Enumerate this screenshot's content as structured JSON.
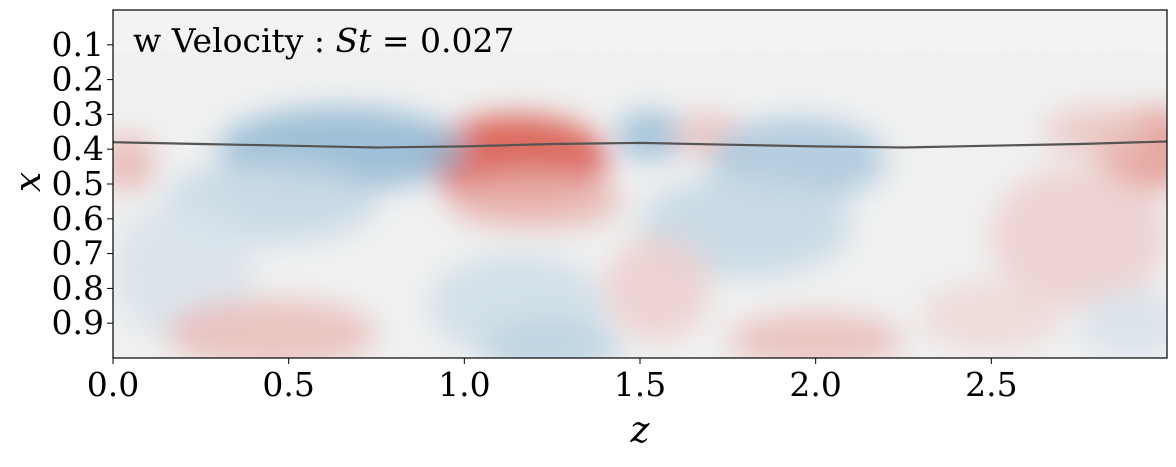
{
  "chart_data": {
    "type": "heatmap",
    "title": "w Velocity : St = 0.027",
    "title_parts": {
      "prefix": "w Velocity : ",
      "var": "St",
      "rest": " = 0.027"
    },
    "xlabel": "z",
    "ylabel": "x",
    "xlim": [
      0.0,
      3.0
    ],
    "ylim": [
      1.0,
      0.0
    ],
    "x_ticks": [
      {
        "value": 0.0,
        "label": "0.0"
      },
      {
        "value": 0.5,
        "label": "0.5"
      },
      {
        "value": 1.0,
        "label": "1.0"
      },
      {
        "value": 1.5,
        "label": "1.5"
      },
      {
        "value": 2.0,
        "label": "2.0"
      },
      {
        "value": 2.5,
        "label": "2.5"
      }
    ],
    "y_ticks": [
      {
        "value": 0.1,
        "label": "0.1"
      },
      {
        "value": 0.2,
        "label": "0.2"
      },
      {
        "value": 0.3,
        "label": "0.3"
      },
      {
        "value": 0.4,
        "label": "0.4"
      },
      {
        "value": 0.5,
        "label": "0.5"
      },
      {
        "value": 0.6,
        "label": "0.6"
      },
      {
        "value": 0.7,
        "label": "0.7"
      },
      {
        "value": 0.8,
        "label": "0.8"
      },
      {
        "value": 0.9,
        "label": "0.9"
      }
    ],
    "colormap": {
      "negative": "#2c7fb8",
      "zero": "#f7f7f7",
      "positive": "#d7301f"
    },
    "interface_line": {
      "color": "#555555",
      "z": [
        0.0,
        0.25,
        0.5,
        0.75,
        1.0,
        1.25,
        1.5,
        1.75,
        2.0,
        2.25,
        2.5,
        2.75,
        3.0
      ],
      "x": [
        0.38,
        0.385,
        0.39,
        0.395,
        0.392,
        0.385,
        0.382,
        0.387,
        0.392,
        0.395,
        0.39,
        0.385,
        0.378
      ]
    },
    "regions": [
      {
        "z": 1.15,
        "x": 0.43,
        "rz": 0.26,
        "rx": 0.13,
        "value": 0.9
      },
      {
        "z": 1.2,
        "x": 0.55,
        "rz": 0.25,
        "rx": 0.08,
        "value": 0.35
      },
      {
        "z": 0.65,
        "x": 0.4,
        "rz": 0.35,
        "rx": 0.12,
        "value": -0.55
      },
      {
        "z": 0.45,
        "x": 0.55,
        "rz": 0.3,
        "rx": 0.12,
        "value": -0.25
      },
      {
        "z": 1.53,
        "x": 0.36,
        "rz": 0.1,
        "rx": 0.07,
        "value": -0.5
      },
      {
        "z": 1.7,
        "x": 0.36,
        "rz": 0.1,
        "rx": 0.06,
        "value": 0.3
      },
      {
        "z": 1.95,
        "x": 0.43,
        "rz": 0.25,
        "rx": 0.12,
        "value": -0.4
      },
      {
        "z": 1.8,
        "x": 0.62,
        "rz": 0.3,
        "rx": 0.15,
        "value": -0.25
      },
      {
        "z": 2.95,
        "x": 0.4,
        "rz": 0.15,
        "rx": 0.12,
        "value": 0.5
      },
      {
        "z": 2.8,
        "x": 0.35,
        "rz": 0.15,
        "rx": 0.07,
        "value": 0.25
      },
      {
        "z": 0.04,
        "x": 0.44,
        "rz": 0.08,
        "rx": 0.08,
        "value": 0.35
      },
      {
        "z": 2.75,
        "x": 0.65,
        "rz": 0.25,
        "rx": 0.2,
        "value": 0.2
      },
      {
        "z": 0.2,
        "x": 0.75,
        "rz": 0.2,
        "rx": 0.2,
        "value": -0.15
      },
      {
        "z": 0.45,
        "x": 0.93,
        "rz": 0.3,
        "rx": 0.1,
        "value": 0.3
      },
      {
        "z": 1.15,
        "x": 0.85,
        "rz": 0.25,
        "rx": 0.15,
        "value": -0.2
      },
      {
        "z": 1.25,
        "x": 0.97,
        "rz": 0.2,
        "rx": 0.08,
        "value": -0.3
      },
      {
        "z": 2.0,
        "x": 0.95,
        "rz": 0.25,
        "rx": 0.08,
        "value": 0.3
      },
      {
        "z": 1.55,
        "x": 0.8,
        "rz": 0.15,
        "rx": 0.15,
        "value": 0.2
      },
      {
        "z": 2.5,
        "x": 0.88,
        "rz": 0.2,
        "rx": 0.1,
        "value": 0.15
      },
      {
        "z": 2.9,
        "x": 0.9,
        "rz": 0.15,
        "rx": 0.1,
        "value": -0.15
      }
    ]
  }
}
